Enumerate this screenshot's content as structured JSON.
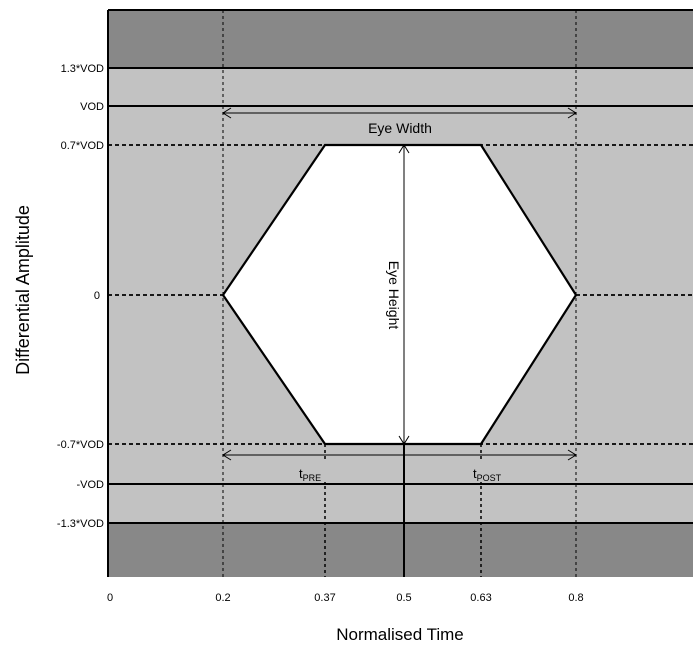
{
  "y_axis": {
    "label": "Differential Amplitude",
    "levels": [
      {
        "label": "1.3*VOD"
      },
      {
        "label": "VOD"
      },
      {
        "label": "0.7*VOD"
      },
      {
        "label": "0"
      },
      {
        "label": "-0.7*VOD"
      },
      {
        "label": "-VOD"
      },
      {
        "label": "-1.3*VOD"
      }
    ]
  },
  "x_axis": {
    "label": "Normalised Time",
    "ticks": [
      "0",
      "0.2",
      "0.37",
      "0.5",
      "0.63",
      "0.8"
    ]
  },
  "annotations": {
    "eye_width": "Eye Width",
    "eye_height": "Eye Height",
    "t_pre_main": "t",
    "t_pre_sub": "PRE",
    "t_post_main": "t",
    "t_post_sub": "POST"
  },
  "colors": {
    "outer_band": "#888888",
    "mask_region": "#c2c2c2",
    "eye": "#ffffff",
    "line": "#000000"
  }
}
